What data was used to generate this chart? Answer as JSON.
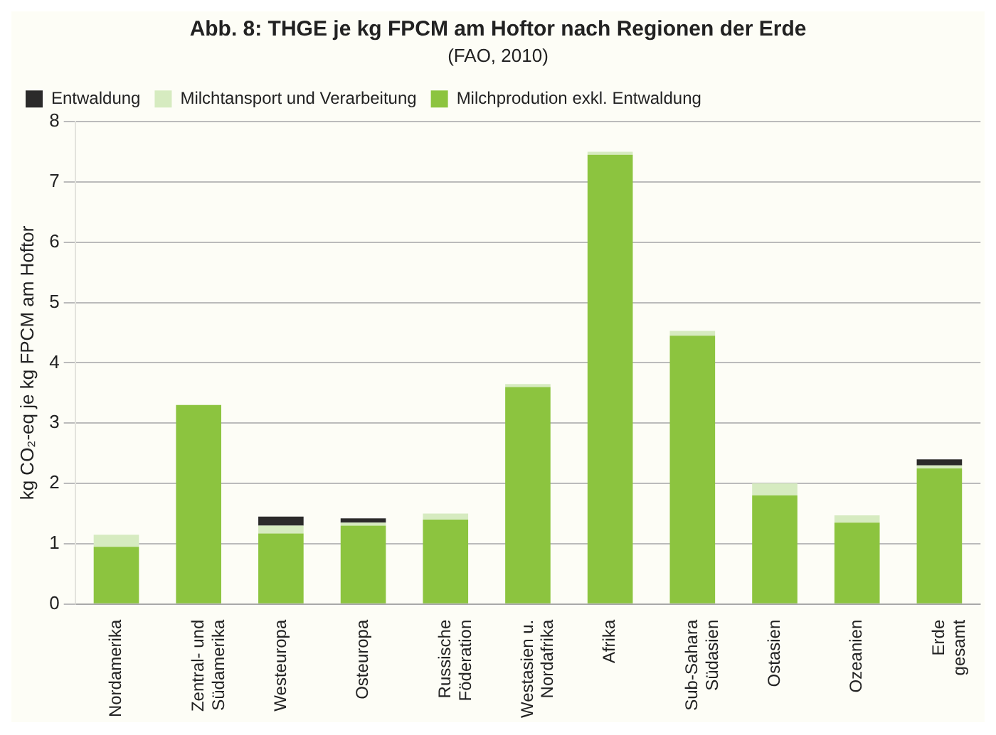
{
  "chart_data": {
    "type": "bar",
    "title": "Abb. 8: THGE je kg FPCM am Hoftor nach Regionen der Erde",
    "subtitle": "(FAO, 2010)",
    "ylabel": "kg CO₂-eq je kg FPCM am Hoftor",
    "categories": [
      "Nordamerika",
      "Zentral- und Südamerika",
      "Westeuropa",
      "Osteuropa",
      "Russische Föderation",
      "Westasien u. Nordafrika",
      "Afrika",
      "Sub-Sahara Südasien",
      "Ostasien",
      "Ozeanien",
      "Erde gesamt"
    ],
    "series": [
      {
        "name": "Milchprodution exkl. Entwaldung",
        "color": "#8cc43f",
        "values": [
          0.95,
          3.3,
          1.17,
          1.3,
          1.4,
          3.6,
          7.45,
          4.45,
          1.8,
          1.35,
          2.25
        ]
      },
      {
        "name": "Milchtansport und Verarbeitung",
        "color": "#d6ebc0",
        "values": [
          0.2,
          null,
          0.13,
          0.05,
          0.1,
          0.05,
          0.05,
          0.08,
          0.2,
          0.12,
          0.05
        ]
      },
      {
        "name": "Entwaldung",
        "color": "#2b2a2a",
        "values": [
          null,
          null,
          0.15,
          0.07,
          null,
          null,
          null,
          null,
          null,
          null,
          0.1
        ]
      }
    ],
    "stacked": true,
    "ylim": [
      0,
      8
    ],
    "yticks": [
      0,
      1,
      2,
      3,
      4,
      5,
      6,
      7,
      8
    ],
    "grid": "y",
    "legend": "top left"
  }
}
